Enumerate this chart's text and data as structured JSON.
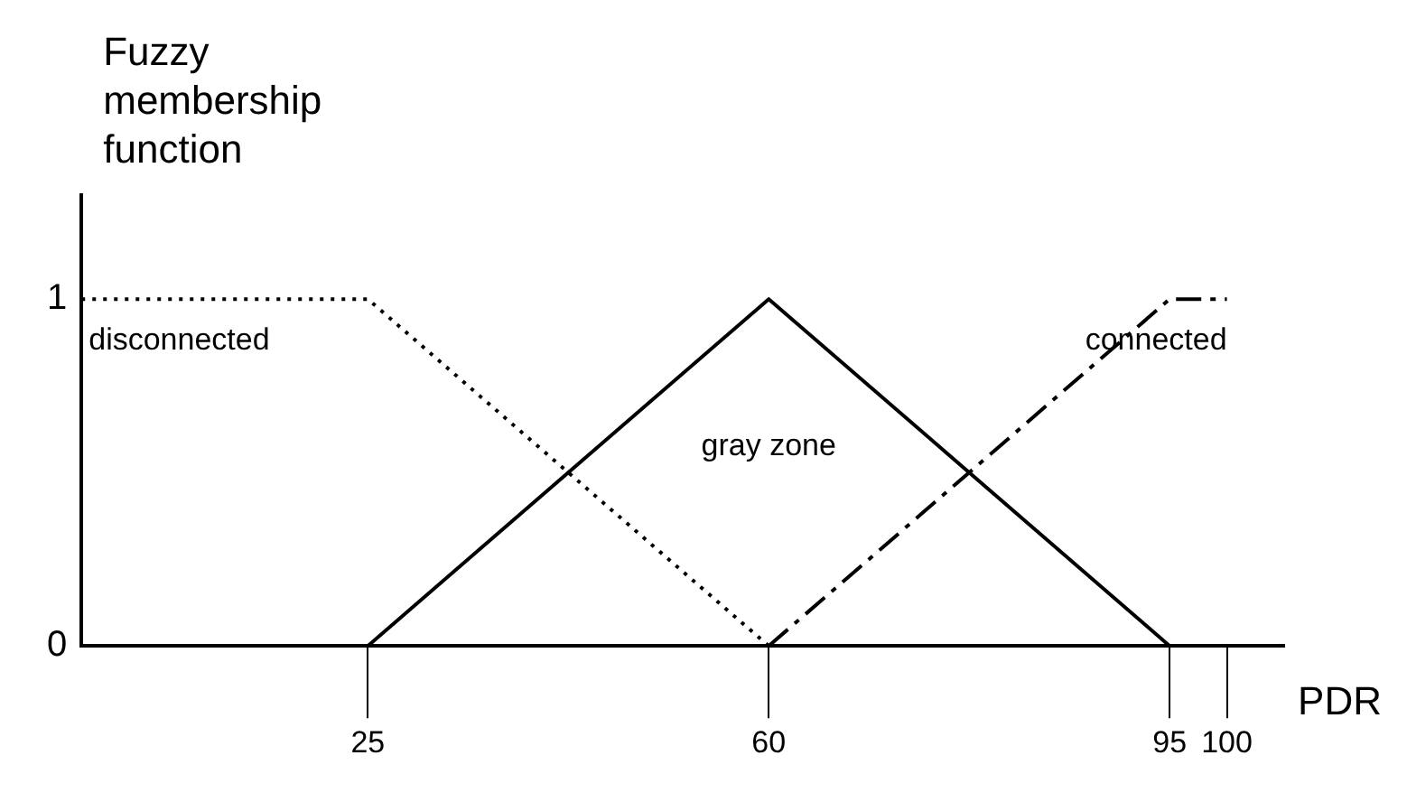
{
  "chart_data": {
    "type": "line",
    "ylabel": "Fuzzy membership function",
    "xlabel": "PDR",
    "xlim": [
      0,
      105
    ],
    "xticks": [
      25,
      60,
      95,
      100
    ],
    "ylim": [
      0,
      1.3
    ],
    "yticks": [
      0,
      1
    ],
    "grid": false,
    "legend": false,
    "marker": "none",
    "series": [
      {
        "name": "disconnected",
        "color": "#000000",
        "line_style": "dotted",
        "x": [
          0,
          25,
          60,
          95
        ],
        "values": [
          1,
          1,
          0,
          0
        ]
      },
      {
        "name": "gray zone",
        "color": "#000000",
        "line_style": "solid",
        "x": [
          0,
          25,
          60,
          95
        ],
        "values": [
          0,
          0,
          1,
          0
        ]
      },
      {
        "name": "connected",
        "color": "#000000",
        "line_style": "dashed",
        "x": [
          60,
          95,
          100
        ],
        "values": [
          0,
          1,
          1
        ]
      }
    ]
  }
}
